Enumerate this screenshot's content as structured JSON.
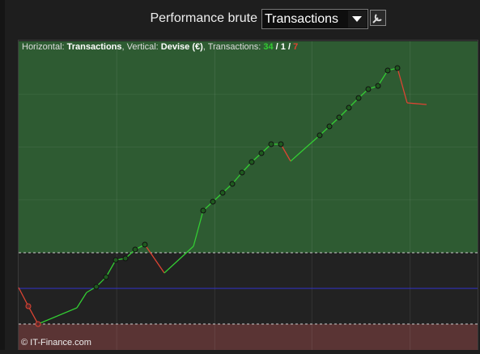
{
  "header": {
    "title": "Performance brute",
    "dropdown": "Transactions"
  },
  "chart_data": {
    "type": "line",
    "legend": {
      "h_label": "Horizontal: ",
      "h_value": "Transactions",
      "v_label": ", Vertical: ",
      "v_value": "Devise (€)",
      "t_label": ", Transactions: ",
      "wins": 34,
      "sep1": " / ",
      "even": 1,
      "sep2": " / ",
      "losses": 7
    },
    "footer": "© IT-Finance.com",
    "x": [
      0,
      1,
      2,
      6,
      7,
      8,
      9,
      10,
      11,
      12,
      13,
      15,
      18,
      19,
      20,
      21,
      22,
      23,
      24,
      25,
      26,
      27,
      28,
      31,
      32,
      33,
      34,
      35,
      36,
      37,
      38,
      39,
      40,
      42
    ],
    "values": [
      1,
      -22,
      -44,
      -24,
      -5,
      2,
      14,
      35,
      37,
      48,
      54,
      19,
      52,
      96,
      107,
      118,
      129,
      143,
      156,
      167,
      178,
      178,
      157,
      189,
      200,
      211,
      223,
      235,
      246,
      250,
      269,
      272,
      229,
      227
    ],
    "markers": [
      false,
      true,
      true,
      false,
      false,
      true,
      true,
      true,
      true,
      true,
      true,
      false,
      false,
      true,
      true,
      true,
      true,
      true,
      true,
      true,
      true,
      true,
      false,
      true,
      true,
      true,
      true,
      true,
      true,
      true,
      true,
      true,
      false,
      false
    ],
    "up_color": "#33cc33",
    "down_color": "#dd4433",
    "xlim": [
      0,
      47.25
    ],
    "ylim": [
      -76,
      305
    ],
    "xgrid": [
      10.1,
      20.2,
      30.2,
      40.3
    ],
    "upper_band": 44,
    "lower_band": -44,
    "baseline": 0
  }
}
